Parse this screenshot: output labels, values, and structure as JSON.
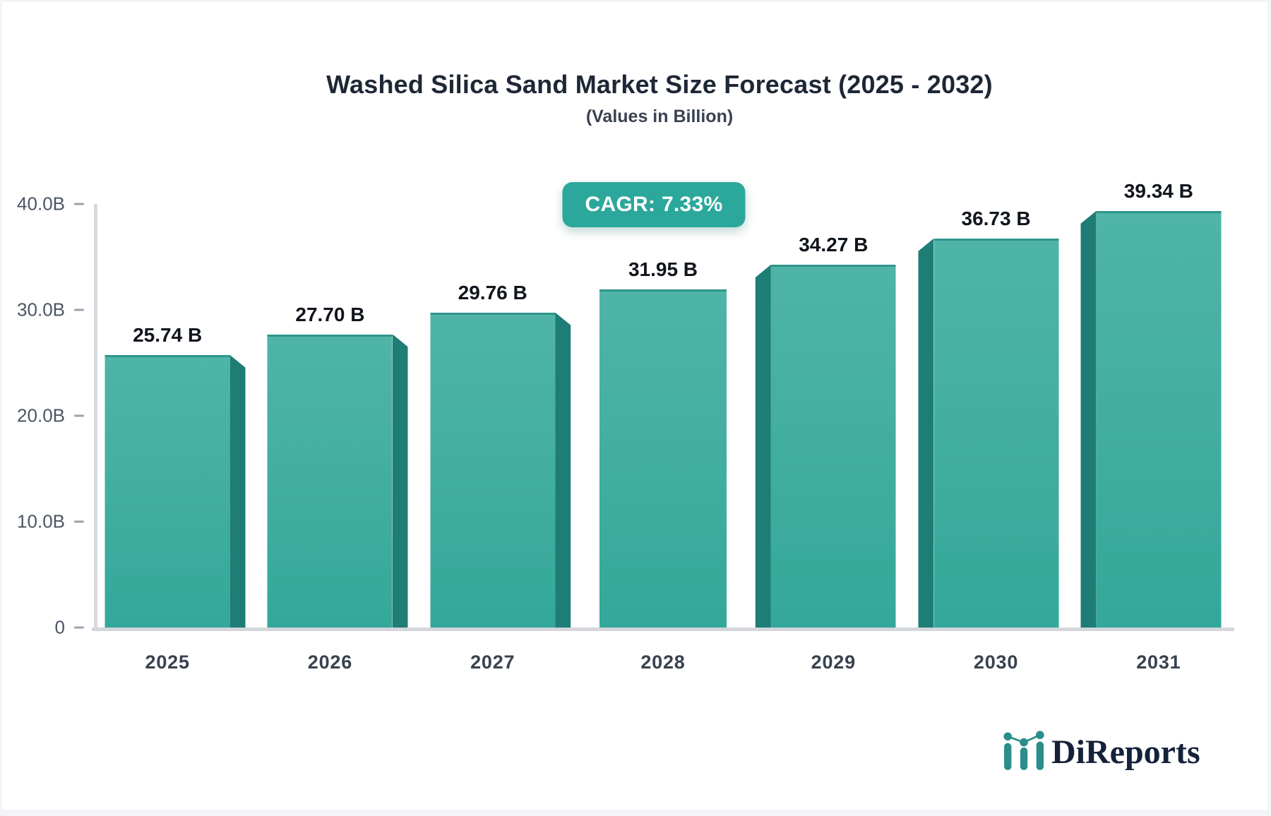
{
  "title": "Washed Silica Sand Market Size Forecast (2025 - 2032)",
  "subtitle": "(Values in Billion)",
  "cagr_badge": "CAGR: 7.33%",
  "chart_data": {
    "type": "bar",
    "title": "Washed Silica Sand Market Size Forecast (2025 - 2032)",
    "subtitle": "(Values in Billion)",
    "annotation": "CAGR: 7.33%",
    "categories": [
      "2025",
      "2026",
      "2027",
      "2028",
      "2029",
      "2030",
      "2031"
    ],
    "values": [
      25.74,
      27.7,
      29.76,
      31.95,
      34.27,
      36.73,
      39.34
    ],
    "bar_labels": [
      "25.74 B",
      "27.70 B",
      "29.76 B",
      "31.95 B",
      "34.27 B",
      "36.73 B",
      "39.34 B"
    ],
    "xlabel": "",
    "ylabel": "",
    "ylim": [
      0,
      40
    ],
    "grid": false,
    "legend": "none",
    "y_ticks": [
      {
        "label": "40.0B",
        "value": 40
      },
      {
        "label": "30.0B",
        "value": 30
      },
      {
        "label": "20.0B",
        "value": 20
      },
      {
        "label": "10.0B",
        "value": 10
      },
      {
        "label": "0",
        "value": 0
      }
    ],
    "colors": {
      "bar_face_top": "#50B4A8",
      "bar_face_bottom": "#33A89A",
      "bar_side": "#1E7D75",
      "bar_top_edge": "#2D968B",
      "badge_background": "#2BA89B",
      "badge_text": "#FFFFFF",
      "axis_line": "#D7D9DE"
    }
  },
  "logo": {
    "text": "DiReports",
    "icon": "mini-bar-line-chart-icon",
    "navy": "#14223A",
    "teal": "#2B8E8A"
  }
}
